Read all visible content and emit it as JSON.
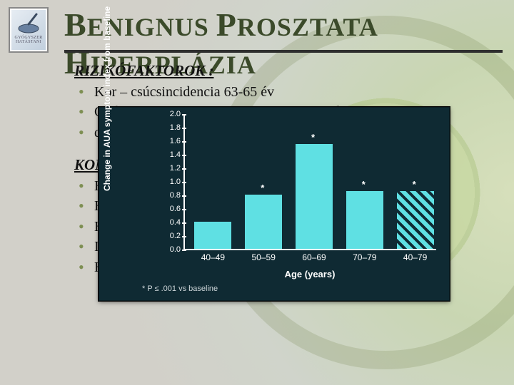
{
  "title_parts": [
    "B",
    "ENIGNUS ",
    "P",
    "ROSZTATA ",
    "H",
    "IPERPLÁZIA"
  ],
  "logo_text": "GYÓGYSZER\nHATÁSTANI",
  "section1": {
    "heading": "RIZIKÓFAKTOROK  :",
    "items": [
      "Kor – csúcsincidencia 63-65 év",
      "Gyó................................................(szteroidok.................../..).",
      "de..............................................................................ok"
    ]
  },
  "section2": {
    "heading": "KOMI",
    "items": [
      "H",
      "H",
      "H",
      "Im",
      "H"
    ]
  },
  "chart": {
    "type": "bar",
    "y_label": "Change in AUA symptom\nindex from baseline",
    "x_label": "Age (years)",
    "footnote": "* P ≤ .001 vs baseline",
    "y_min": 0.0,
    "y_max": 2.0,
    "y_step": 0.2,
    "bar_color": "#5fe0e3",
    "bg_color": "#0f2a33",
    "categories": [
      "40–49",
      "50–59",
      "60–69",
      "70–79",
      "40–79"
    ],
    "values": [
      0.4,
      0.8,
      1.55,
      0.85,
      0.85
    ],
    "sig": [
      false,
      true,
      true,
      true,
      true
    ],
    "hatched": [
      false,
      false,
      false,
      false,
      true
    ]
  }
}
